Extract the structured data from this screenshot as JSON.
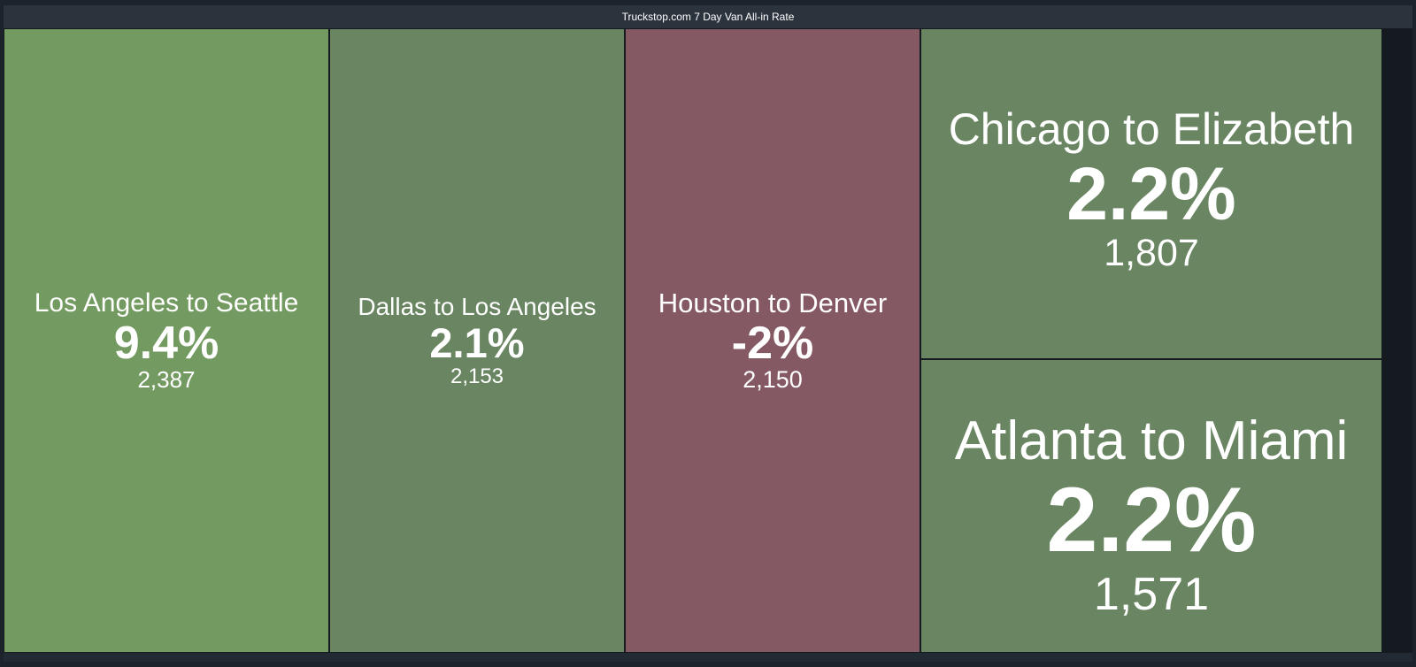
{
  "title": "Truckstop.com 7 Day Van All-in Rate",
  "chart_data": {
    "type": "treemap",
    "title": "Truckstop.com 7 Day Van All-in Rate",
    "items": [
      {
        "label": "Los Angeles to Seattle",
        "change": "9.4%",
        "change_value": 9.4,
        "value": "2,387",
        "value_num": 2387,
        "color": "#739a60"
      },
      {
        "label": "Dallas to Los Angeles",
        "change": "2.1%",
        "change_value": 2.1,
        "value": "2,153",
        "value_num": 2153,
        "color": "#698562"
      },
      {
        "label": "Houston to Denver",
        "change": "-2%",
        "change_value": -2,
        "value": "2,150",
        "value_num": 2150,
        "color": "#845963"
      },
      {
        "label": "Chicago to Elizabeth",
        "change": "2.2%",
        "change_value": 2.2,
        "value": "1,807",
        "value_num": 1807,
        "color": "#698562"
      },
      {
        "label": "Atlanta to Miami",
        "change": "2.2%",
        "change_value": 2.2,
        "value": "1,571",
        "value_num": 1571,
        "color": "#698562"
      }
    ]
  }
}
